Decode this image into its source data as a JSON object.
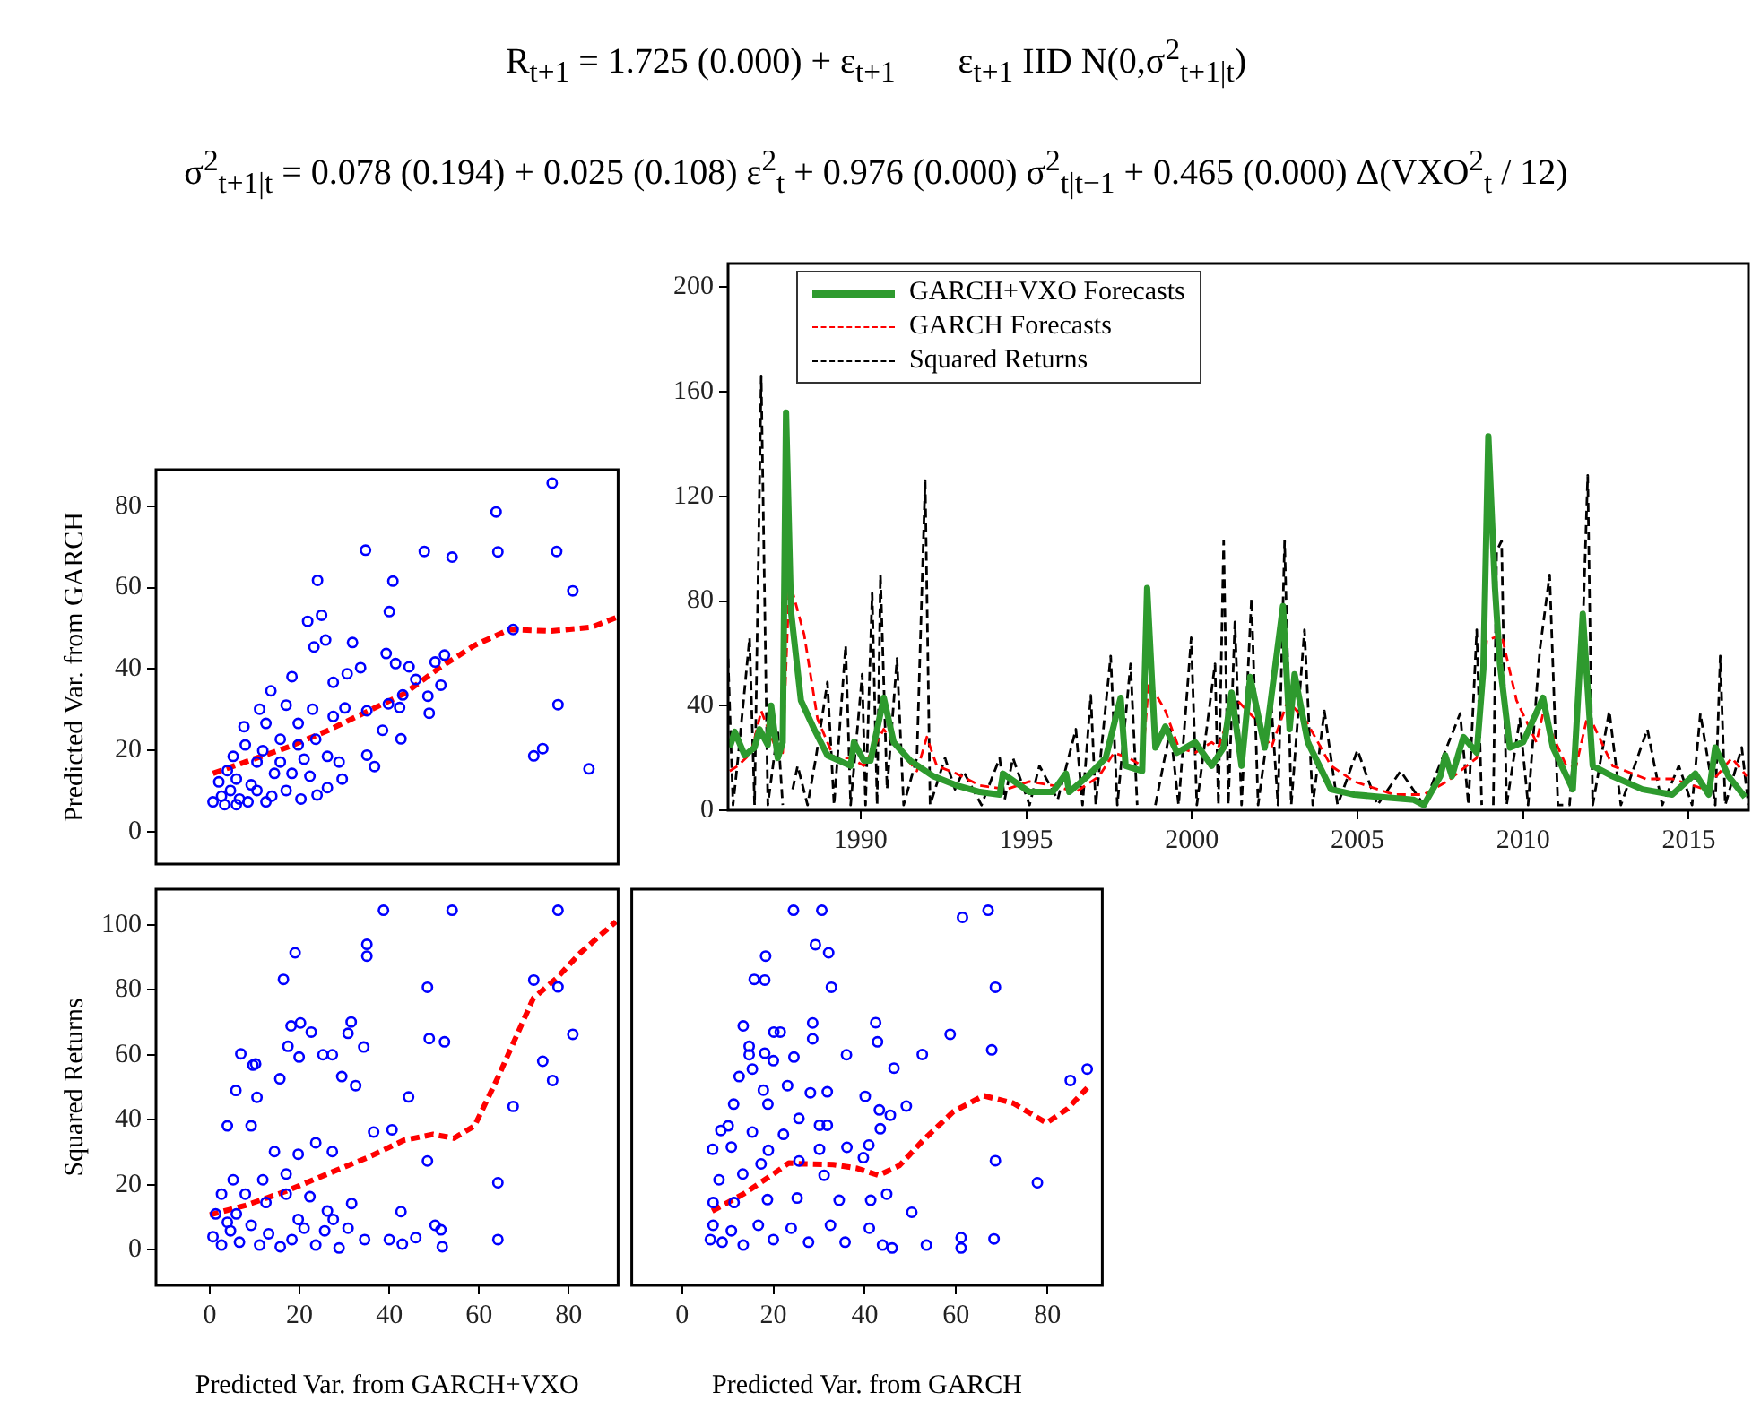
{
  "chart_data": [
    {
      "type": "line",
      "annotations": [
        "R$_{t+1}$ = 1.725 (0.000) + ε$_{t+1}$       ε$_{t+1}$ IID N(0,σ$^{2}$$_{t+1|t}$)",
        "σ$^{2}$$_{t+1|t}$ = 0.078 (0.194) + 0.025 (0.108) ε$^{2}$$_{t}$ + 0.976 (0.000) σ$^{2}$$_{t|t−1}$ + 0.465 (0.000) Δ(VXO$^{2}$$_{t}$ / 12)"
      ],
      "xlim": [
        1986,
        2016.8
      ],
      "xticks": [
        1990,
        1995,
        2000,
        2005,
        2010,
        2015
      ],
      "ylim": [
        0,
        209
      ],
      "yticks": [
        0,
        40,
        80,
        120,
        160,
        200
      ],
      "grid": false,
      "legend": "top left",
      "marker": "none",
      "series": [
        {
          "name": "GARCH+VXO Forecasts",
          "color": "#2e9a2e",
          "line_style": "solid",
          "x": [
            1986.05,
            1986.2,
            1986.5,
            1986.8,
            1986.95,
            1987.2,
            1987.3,
            1987.5,
            1987.65,
            1987.75,
            1987.9,
            1988.2,
            1988.6,
            1989.0,
            1989.7,
            1989.8,
            1990.1,
            1990.3,
            1990.7,
            1991.0,
            1991.5,
            1992.2,
            1992.9,
            1993.6,
            1994.2,
            1994.3,
            1995.1,
            1995.8,
            1996.2,
            1996.3,
            1996.85,
            1997.4,
            1997.85,
            1998.0,
            1998.5,
            1998.65,
            1998.9,
            1999.2,
            1999.55,
            2000.1,
            2000.6,
            2000.96,
            2001.2,
            2001.5,
            2001.76,
            2002.2,
            2002.75,
            2002.95,
            2003.1,
            2003.5,
            2004.2,
            2004.9,
            2005.8,
            2006.7,
            2007.0,
            2007.5,
            2007.65,
            2007.85,
            2008.2,
            2008.6,
            2008.8,
            2008.95,
            2009.15,
            2009.3,
            2009.6,
            2010.0,
            2010.6,
            2010.9,
            2011.5,
            2011.8,
            2012.1,
            2012.7,
            2013.6,
            2014.5,
            2015.2,
            2015.6,
            2015.8,
            2016.2,
            2016.7
          ],
          "values": [
            24,
            30,
            21,
            24,
            31,
            25,
            40,
            20,
            26,
            152,
            76,
            42,
            31,
            21,
            17,
            26,
            19,
            19,
            43,
            26,
            19,
            13,
            9.5,
            7,
            6,
            14,
            7,
            7,
            14,
            7,
            13,
            20,
            43,
            17,
            15,
            85,
            24,
            32,
            22,
            26,
            17,
            24,
            45,
            17,
            51,
            24,
            78,
            31,
            52,
            26,
            8,
            6,
            5,
            4,
            2,
            13,
            21,
            13,
            28,
            22,
            54,
            143,
            85,
            56,
            24,
            26,
            43,
            24,
            8,
            75,
            17,
            13,
            8,
            6,
            14,
            6,
            24,
            13,
            5
          ]
        },
        {
          "name": "GARCH Forecasts",
          "color": "#ff0000",
          "line_style": "dashed",
          "x": [
            1986.05,
            1986.3,
            1986.7,
            1987.0,
            1987.4,
            1987.65,
            1987.85,
            1988.3,
            1988.7,
            1989.2,
            1989.7,
            1990.1,
            1990.4,
            1990.7,
            1991.1,
            1991.7,
            1992.0,
            1992.3,
            1992.9,
            1993.6,
            1994.4,
            1995.1,
            1995.8,
            1996.5,
            1997.2,
            1997.65,
            1998.1,
            1998.5,
            1998.7,
            1999.2,
            1999.6,
            2000.1,
            2000.6,
            2000.8,
            2001.3,
            2001.9,
            2002.4,
            2002.9,
            2003.5,
            2004.2,
            2004.9,
            2006.1,
            2007.0,
            2007.7,
            2008.6,
            2008.9,
            2009.35,
            2009.8,
            2010.4,
            2010.6,
            2011.3,
            2011.6,
            2011.96,
            2012.7,
            2013.7,
            2014.5,
            2015.5,
            2016.3,
            2016.75
          ],
          "values": [
            15,
            17,
            22,
            38,
            25,
            22,
            88,
            67,
            35,
            20,
            20,
            17,
            24,
            31,
            24,
            15,
            28,
            17,
            14,
            9.5,
            8,
            11,
            9.5,
            7,
            13,
            22,
            20,
            17,
            49,
            38,
            24,
            22,
            26,
            24,
            43,
            35,
            24,
            42,
            33,
            17,
            11,
            6,
            6,
            11,
            20,
            65,
            67,
            42,
            26,
            37,
            17,
            17,
            37,
            17,
            12,
            12,
            8,
            20,
            13
          ]
        },
        {
          "name": "Squared Returns",
          "color": "#000000",
          "line_style": "dashed",
          "x": [
            1986.0,
            1986.15,
            1986.3,
            1986.65,
            1986.8,
            1987.0,
            1987.2,
            1987.5,
            1987.65,
            1987.8,
            1987.95,
            1988.1,
            1988.4,
            1988.65,
            1989.0,
            1989.2,
            1989.55,
            1989.7,
            1990.05,
            1990.15,
            1990.35,
            1990.5,
            1990.6,
            1990.8,
            1991.1,
            1991.3,
            1991.7,
            1991.95,
            1992.1,
            1992.55,
            1992.85,
            1993.1,
            1993.65,
            1994.2,
            1994.35,
            1994.6,
            1995.1,
            1995.4,
            1995.95,
            1996.5,
            1996.7,
            1996.95,
            1997.1,
            1997.55,
            1997.75,
            1998.15,
            1998.35,
            1998.65,
            1998.9,
            1999.35,
            1999.6,
            1999.98,
            2000.15,
            2000.7,
            2000.8,
            2000.96,
            2001.1,
            2001.3,
            2001.5,
            2001.8,
            2002.0,
            2002.4,
            2002.6,
            2002.8,
            2003.0,
            2003.4,
            2003.65,
            2004.0,
            2004.4,
            2005.0,
            2005.6,
            2006.3,
            2007.0,
            2008.1,
            2008.35,
            2008.6,
            2008.75,
            2008.9,
            2009.1,
            2009.2,
            2009.35,
            2009.5,
            2009.9,
            2010.15,
            2010.5,
            2010.8,
            2011.05,
            2011.4,
            2011.8,
            2011.95,
            2012.1,
            2012.6,
            2012.95,
            2013.75,
            2014.2,
            2014.7,
            2015.1,
            2015.35,
            2015.8,
            2015.95,
            2016.1,
            2016.6,
            2016.8
          ],
          "values": [
            58,
            2,
            20,
            66,
            2,
            166,
            2,
            31,
            2,
            null,
            8,
            17,
            2,
            20,
            49,
            2,
            63,
            2,
            52,
            2,
            83,
            2,
            90,
            8,
            58,
            2,
            20,
            126,
            2,
            20,
            8,
            15,
            2,
            20,
            4,
            20,
            2,
            17,
            4,
            31,
            2,
            44,
            2,
            59,
            2,
            56,
            2,
            null,
            2,
            31,
            2,
            66,
            2,
            56,
            2,
            103,
            2,
            72,
            2,
            81,
            2,
            40,
            2,
            103,
            2,
            69,
            2,
            38,
            2,
            23,
            2,
            15,
            2,
            37,
            2,
            69,
            2,
            null,
            2,
            99,
            103,
            2,
            35,
            2,
            61,
            90,
            2,
            2,
            69,
            128,
            2,
            38,
            2,
            31,
            2,
            17,
            2,
            37,
            2,
            59,
            2,
            24,
            2
          ]
        }
      ]
    },
    {
      "type": "scatter",
      "ylabel": "Predicted Var. from GARCH",
      "xlim": [
        -12,
        91
      ],
      "ylim": [
        -8,
        89
      ],
      "yticks": [
        0,
        20,
        40,
        60,
        80
      ],
      "grid": false,
      "tick_labels": "y",
      "marker": "circle",
      "series": [
        {
          "color": "#0000ff",
          "x": [
            34.7,
            47.8,
            54,
            63.8,
            64.2,
            76.3,
            77.3,
            80.9,
            67.6,
            24,
            40.8,
            40,
            21.8,
            24.9,
            25.8,
            23.2,
            31.8,
            39.3,
            41.4,
            44.4,
            50.2,
            52.3,
            33.6,
            45.9,
            51.5,
            48.6,
            48.9,
            43,
            42.3,
            39.8,
            35,
            42.6,
            38.5,
            35,
            36.7,
            72.2,
            74.2,
            77.6,
            84.5,
            13.6,
            18.3,
            17,
            11.1,
            7.6,
            12.5,
            19.7,
            22.9,
            27.5,
            30.6,
            30.1,
            27.5,
            23.6,
            19.7,
            15.7,
            11.8,
            7.9,
            5.2,
            10.5,
            15.7,
            21,
            26.2,
            28.8,
            29.5,
            26.2,
            23.9,
            20.3,
            17,
            13.8,
            9.2,
            5.9,
            3.9,
            2,
            0.7,
            2.6,
            4.6,
            6.6,
            8.5,
            3.3,
            5.9,
            10.5,
            12.5,
            14.4,
            18.3,
            22.3
          ],
          "values": [
            69.2,
            68.9,
            67.5,
            78.6,
            68.8,
            85.7,
            68.9,
            59.2,
            49.7,
            61.8,
            61.6,
            54.1,
            51.7,
            53.2,
            47.1,
            45.4,
            46.5,
            43.8,
            41.3,
            40.5,
            41.7,
            43.4,
            40.3,
            37.4,
            36,
            33.3,
            29.1,
            33.6,
            30.5,
            31.4,
            29.7,
            22.8,
            24.9,
            18.8,
            16,
            18.6,
            20.4,
            31.2,
            15.4,
            34.6,
            38.1,
            31.1,
            30.1,
            25.8,
            26.6,
            26.6,
            30.1,
            36.7,
            38.8,
            30.4,
            28.3,
            22.7,
            21.3,
            22.7,
            19.9,
            21.3,
            18.5,
            17.1,
            17.1,
            17.8,
            18.5,
            17.1,
            12.9,
            10.8,
            9,
            8,
            10.1,
            8.7,
            11.5,
            12.9,
            15,
            12.2,
            7.3,
            8.7,
            10.1,
            8,
            7.3,
            6.6,
            6.6,
            10.1,
            7.3,
            14.3,
            14.3,
            13.6
          ]
        },
        {
          "type": "line",
          "marker": "none",
          "line_style": "dashed",
          "color": "#ff0000",
          "x": [
            0.7,
            7.9,
            17,
            26.2,
            35.4,
            43.3,
            51.1,
            59,
            66.8,
            76,
            85.2,
            90.5
          ],
          "values": [
            14.3,
            17.1,
            20.6,
            24.8,
            29.7,
            33.9,
            40.2,
            45.8,
            49.7,
            49.3,
            50.3,
            52.6
          ]
        }
      ]
    },
    {
      "type": "scatter",
      "xlabel": "Predicted Var. from GARCH+VXO",
      "ylabel": "Squared Returns",
      "xlim": [
        -12,
        91
      ],
      "xticks": [
        0,
        20,
        40,
        60,
        80
      ],
      "ylim": [
        -11,
        111
      ],
      "yticks": [
        0,
        20,
        40,
        60,
        80,
        100
      ],
      "grid": false,
      "marker": "circle",
      "series": [
        {
          "color": "#0000ff",
          "x": [
            38.7,
            54,
            77.6,
            35,
            35,
            19,
            16.4,
            72.2,
            77.6,
            48.5,
            80.9,
            48.9,
            52.3,
            74.2,
            76.4,
            67.6,
            64.2,
            64.2,
            18.1,
            20.2,
            22.6,
            31.5,
            30.8,
            25.2,
            27.3,
            17.4,
            19.9,
            6.9,
            9.6,
            10.2,
            5.8,
            10.5,
            15.6,
            29.4,
            32.5,
            34.3,
            44.3,
            40.6,
            36.5,
            48.5,
            42.6,
            45.9,
            50.2,
            51.5,
            51.8,
            42.9,
            40,
            34.5,
            31.6,
            30.8,
            28.8,
            3.9,
            9.2,
            14.4,
            19.7,
            23.6,
            27.3,
            17,
            11.8,
            5.2,
            2.6,
            7.9,
            12.5,
            17,
            22.3,
            26.2,
            1.3,
            0.7,
            2.6,
            4.6,
            6.6,
            9.2,
            11.1,
            13.1,
            15.7,
            18.3,
            21,
            23.6,
            25.6,
            27.5,
            3.9,
            5.9,
            19.7
          ],
          "values": [
            104.5,
            104.5,
            104.5,
            94,
            90.4,
            91.4,
            83.2,
            83,
            80.9,
            80.8,
            66.3,
            65,
            64,
            58,
            52.1,
            44.1,
            20.6,
            3.1,
            68.9,
            69.8,
            67,
            70.1,
            66.6,
            60,
            60,
            62.6,
            59.3,
            60.3,
            56.8,
            57.2,
            49,
            46.9,
            52.6,
            53.3,
            50.5,
            62.4,
            47,
            36.9,
            36.2,
            27.3,
            11.7,
            3.7,
            7.5,
            6.1,
            0.9,
            1.7,
            3.1,
            3.1,
            14.2,
            6.6,
            0.5,
            38.1,
            38.1,
            30.2,
            29.4,
            32.9,
            30.2,
            23.3,
            21.5,
            21.5,
            17.1,
            17.1,
            14.5,
            17.1,
            16.3,
            11.9,
            11,
            4,
            1.4,
            5.8,
            2.3,
            7.5,
            1.4,
            4.9,
            0.9,
            3.1,
            6.6,
            1.4,
            5.8,
            9.3,
            8.4,
            11,
            9.3
          ]
        },
        {
          "type": "line",
          "marker": "none",
          "line_style": "dashed",
          "color": "#ff0000",
          "x": [
            0,
            7.9,
            17,
            26.2,
            35.4,
            43.3,
            49.8,
            54.4,
            59,
            64.2,
            72.1,
            77.3,
            82.6,
            90.5
          ],
          "values": [
            10.7,
            13.6,
            18,
            23.3,
            28.5,
            33.7,
            35.5,
            34.3,
            38.1,
            53,
            77.4,
            83.6,
            91.4,
            101
          ]
        }
      ]
    },
    {
      "type": "scatter",
      "xlabel": "Predicted Var. from GARCH",
      "xlim": [
        -11,
        92
      ],
      "xticks": [
        0,
        20,
        40,
        60,
        80
      ],
      "ylim": [
        -11,
        111
      ],
      "grid": false,
      "tick_labels": "x",
      "marker": "circle",
      "series": [
        {
          "color": "#0000ff",
          "x": [
            24.4,
            30.6,
            61.4,
            67,
            29.2,
            32.1,
            18.3,
            15.8,
            18.1,
            32.7,
            68.6,
            13.4,
            20.1,
            21.5,
            28.6,
            28.6,
            42.4,
            42.8,
            58.7,
            52.6,
            67.8,
            36,
            46.4,
            85,
            88.7,
            14.7,
            14.7,
            15.4,
            12.5,
            18.1,
            20,
            24.5,
            23.1,
            17.8,
            11.3,
            18.8,
            28.1,
            31.8,
            40.1,
            49.1,
            43.2,
            45.6,
            43.4,
            8.5,
            10.1,
            15.4,
            22.2,
            30.1,
            31.8,
            25.6,
            6.7,
            10.8,
            18.9,
            30.1,
            36.1,
            40.9,
            68.6,
            77.8,
            39.7,
            25.6,
            17.3,
            13.3,
            8.1,
            31.1,
            44.8,
            50.3,
            41.3,
            34.4,
            25.2,
            18.7,
            11.4,
            6.8,
            6.8,
            8.8,
            10.8,
            13.4,
            16.7,
            20,
            23.9,
            27.7,
            32.5,
            35.7,
            41,
            43.9,
            46,
            53.5,
            61.1,
            61.1,
            68.3,
            6.2
          ],
          "values": [
            104.5,
            104.5,
            102.3,
            104.5,
            93.9,
            91.4,
            90.4,
            83.2,
            83,
            80.8,
            80.8,
            68.9,
            67,
            67,
            69.8,
            64.9,
            69.9,
            64,
            66.3,
            60.1,
            61.5,
            60,
            55.9,
            52.1,
            55.6,
            62.6,
            60,
            55.6,
            53.3,
            60.5,
            58.2,
            59.3,
            50.5,
            49.1,
            44.8,
            44.8,
            48.3,
            48.6,
            47.2,
            44.2,
            43,
            41.4,
            37.2,
            36.7,
            38.1,
            36.2,
            35.5,
            38.3,
            38.3,
            40.4,
            30.9,
            31.6,
            30.6,
            30.9,
            31.5,
            32.2,
            27.4,
            20.6,
            28.3,
            27.3,
            26.4,
            23.3,
            21.5,
            22.9,
            17.1,
            11.5,
            15.2,
            15.2,
            15.9,
            15.4,
            14.5,
            14.5,
            7.5,
            2.3,
            5.8,
            1.4,
            7.5,
            3.1,
            6.6,
            2.3,
            7.5,
            2.3,
            6.6,
            1.4,
            0.5,
            1.4,
            3.7,
            0.5,
            3.3,
            3.1
          ]
        },
        {
          "type": "line",
          "marker": "none",
          "line_style": "dashed",
          "color": "#ff0000",
          "x": [
            6.6,
            13.4,
            20,
            23.4,
            26.5,
            33.1,
            38.4,
            43,
            47.6,
            52.8,
            59.4,
            66,
            72.5,
            79.8,
            84.4,
            88.7
          ],
          "values": [
            11.9,
            17.1,
            23.3,
            26.7,
            26.4,
            26.2,
            25,
            22.9,
            25.9,
            33.7,
            42.5,
            47.4,
            45.1,
            39,
            43.4,
            49.8
          ]
        }
      ]
    }
  ]
}
